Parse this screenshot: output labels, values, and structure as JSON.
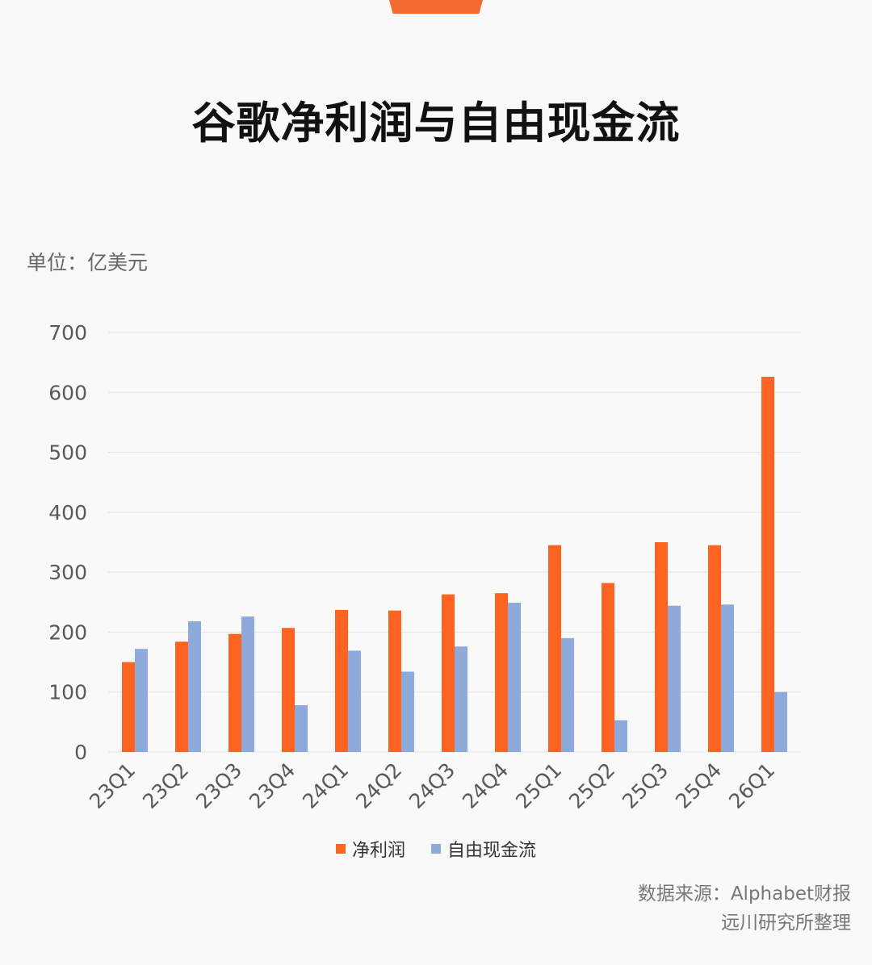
{
  "header": {
    "title": "谷歌净利润与自由现金流",
    "unit": "单位：亿美元"
  },
  "colors": {
    "net_profit": "#ff6320",
    "free_cash_flow": "#8eaadb",
    "grid": "#e2e2e2",
    "tick_text": "#595959"
  },
  "footer": {
    "source_line1": "数据来源：Alphabet财报",
    "source_line2": "远川研究所整理"
  },
  "chart_data": {
    "type": "bar",
    "categories": [
      "23Q1",
      "23Q2",
      "23Q3",
      "23Q4",
      "24Q1",
      "24Q2",
      "24Q3",
      "24Q4",
      "25Q1",
      "25Q2",
      "25Q3",
      "25Q4",
      "26Q1"
    ],
    "series": [
      {
        "name": "净利润",
        "values": [
          150,
          184,
          197,
          207,
          237,
          236,
          263,
          265,
          345,
          282,
          350,
          345,
          626
        ]
      },
      {
        "name": "自由现金流",
        "values": [
          172,
          218,
          226,
          78,
          169,
          134,
          176,
          249,
          190,
          53,
          244,
          246,
          100
        ]
      }
    ],
    "ylim": [
      0,
      700
    ],
    "yticks": [
      "0",
      "100",
      "200",
      "300",
      "400",
      "500",
      "600",
      "700"
    ],
    "grid": true,
    "legend_position": "bottom"
  }
}
